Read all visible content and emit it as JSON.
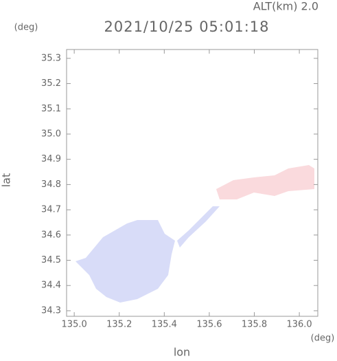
{
  "chart_data": {
    "type": "map",
    "title": "2021/10/25 05:01:18",
    "annotation": "ALT(km)  2.0",
    "x_label": "lon",
    "x_unit": "(deg)",
    "y_label": "lat",
    "y_unit": "(deg)",
    "xlim": [
      134.966,
      136.082
    ],
    "ylim": [
      34.278,
      35.335
    ],
    "xticks": [
      {
        "value": 135.0,
        "label": "135.0"
      },
      135.2,
      135.4,
      135.6,
      135.8,
      {
        "value": 136.0,
        "label": "136.0"
      }
    ],
    "yticks": [
      34.3,
      34.4,
      34.5,
      34.6,
      34.7,
      34.8,
      34.9,
      {
        "value": 35.0,
        "label": "35.0"
      },
      35.1,
      35.2,
      35.3
    ]
  }
}
